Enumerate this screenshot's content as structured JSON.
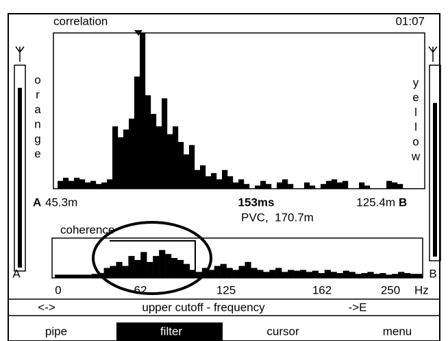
{
  "header": {
    "panel_title": "correlation",
    "time": "01:07"
  },
  "gauges": {
    "left": {
      "label": "orange",
      "sensor": "A"
    },
    "right": {
      "label": "yellow",
      "sensor": "B"
    }
  },
  "correlation": {
    "values": [
      5,
      7,
      5,
      7,
      6,
      4,
      5,
      3,
      4,
      6,
      40,
      33,
      38,
      45,
      72,
      100,
      60,
      48,
      40,
      58,
      35,
      40,
      30,
      22,
      28,
      12,
      15,
      8,
      10,
      6,
      12,
      8,
      4,
      6,
      3,
      0,
      2,
      5,
      3,
      0,
      4,
      6,
      3,
      0,
      0,
      4,
      2,
      0,
      3,
      5,
      6,
      4,
      5,
      0,
      0,
      4,
      2,
      0,
      0,
      0,
      5,
      4,
      3,
      0,
      0,
      0,
      0
    ]
  },
  "readout": {
    "left_sensor": "A",
    "left_distance": "45.3m",
    "delay": "153ms",
    "pipe_info": "PVC,  170.7m",
    "right_distance": "125.4m",
    "right_sensor": "B"
  },
  "coherence": {
    "title": "coherence",
    "values": [
      8,
      8,
      8,
      8,
      8,
      8,
      10,
      12,
      25,
      30,
      40,
      30,
      55,
      45,
      65,
      40,
      55,
      70,
      60,
      50,
      45,
      35,
      20,
      15,
      25,
      20,
      30,
      35,
      25,
      20,
      30,
      40,
      25,
      20,
      15,
      20,
      25,
      15,
      20,
      18,
      20,
      15,
      18,
      12,
      20,
      15,
      12,
      18,
      15,
      10,
      12,
      15,
      10,
      12,
      8,
      10,
      15,
      12,
      10,
      10
    ],
    "axis_labels": [
      "0",
      "62",
      "125",
      "162",
      "250"
    ],
    "unit": "Hz"
  },
  "status": {
    "left": "<->",
    "center": "upper cutoff - frequency",
    "right": "->E"
  },
  "menu": [
    "pipe",
    "filter",
    "cursor",
    "menu"
  ]
}
